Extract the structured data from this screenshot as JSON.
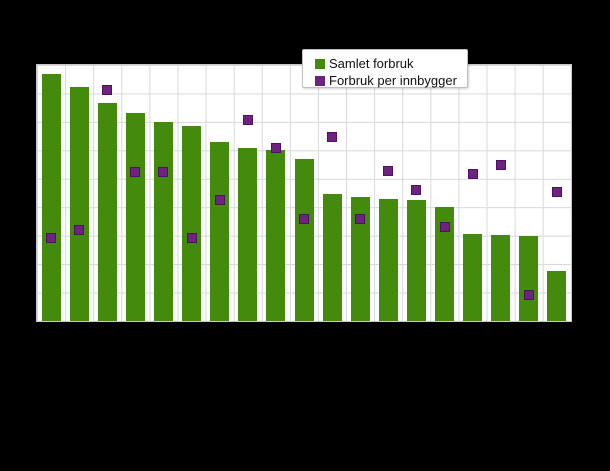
{
  "chart_data": {
    "type": "combo",
    "title": "",
    "xlabel": "",
    "ylabel": "",
    "x_axis_labels_visible": false,
    "y_axis_labels_visible": false,
    "grid": true,
    "x_gridline_divisions": 19,
    "y_gridline_divisions": 9,
    "ylim": [
      0,
      9
    ],
    "legend_position": "top-center-floating",
    "categories": [
      "",
      "",
      "",
      "",
      "",
      "",
      "",
      "",
      "",
      "",
      "",
      "",
      "",
      "",
      "",
      "",
      "",
      "",
      ""
    ],
    "series": [
      {
        "name": "Samlet forbruk",
        "type": "bar",
        "color": "#448a0d",
        "values": [
          8.7,
          8.24,
          7.67,
          7.31,
          7.0,
          6.86,
          6.3,
          6.09,
          6.0,
          5.69,
          4.46,
          4.37,
          4.29,
          4.26,
          4.0,
          3.06,
          3.03,
          3.0,
          1.75
        ]
      },
      {
        "name": "Forbruk per innbygger",
        "type": "scatter",
        "color": "#6d2380",
        "values": [
          2.91,
          3.2,
          8.12,
          5.23,
          5.23,
          2.91,
          4.27,
          7.06,
          6.08,
          3.58,
          6.48,
          3.59,
          5.26,
          4.6,
          3.3,
          5.16,
          5.48,
          0.92,
          4.55
        ]
      }
    ]
  },
  "colors": {
    "page_background": "#000000",
    "plot_background": "#ffffff",
    "gridline": "#d8d8d8",
    "plot_border": "#c9c9c9",
    "bar_green": "#448a0d",
    "point_purple": "#6d2380",
    "legend_border": "#bfbfbf",
    "legend_text": "#111111"
  }
}
